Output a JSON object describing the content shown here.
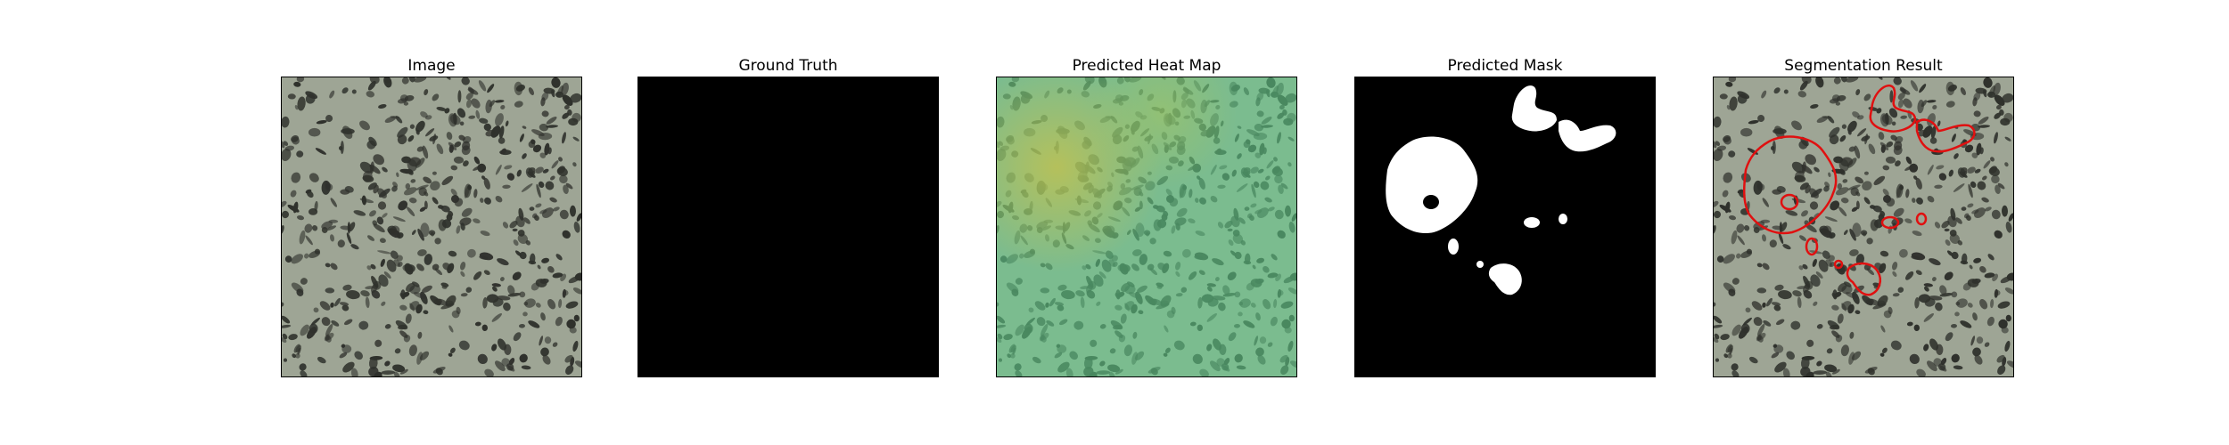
{
  "panels": [
    {
      "title": "Image",
      "content": "texture-photo"
    },
    {
      "title": "Ground Truth",
      "content": "empty-mask"
    },
    {
      "title": "Predicted Heat Map",
      "content": "heatmap-overlay"
    },
    {
      "title": "Predicted Mask",
      "content": "binary-mask"
    },
    {
      "title": "Segmentation Result",
      "content": "contour-overlay"
    }
  ],
  "colors": {
    "texture_base": "#9ea595",
    "texture_spot": "#2f312c",
    "heatmap_tint": "#5fd08a",
    "heatmap_hot": "#c8c24a",
    "mask_fg": "#ffffff",
    "mask_bg": "#000000",
    "contour": "#e01010"
  }
}
